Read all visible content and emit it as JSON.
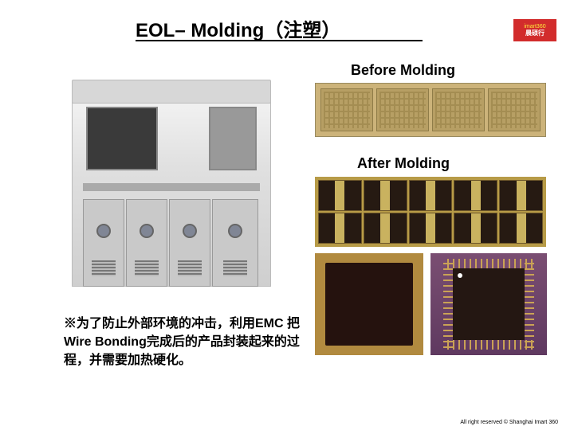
{
  "title": "EOL– Molding（注塑）",
  "logo": {
    "top": "imart360",
    "bottom": "晨硕行",
    "bg": "#d22c2c"
  },
  "labels": {
    "before": "Before Molding",
    "after": "After Molding"
  },
  "description": "※为了防止外部环境的冲击，利用EMC 把Wire Bonding完成后的产品封装起来的过程，并需要加热硬化。",
  "footer": "All right reserved © Shanghai Imart 360",
  "before_frame": {
    "units": 4,
    "bg": "#ccb37a",
    "unit_bg": "#b79f64"
  },
  "after_strip": {
    "cols": 5,
    "rows": 2,
    "frame_bg": "#b79b47",
    "mold_bg": "#261a12"
  },
  "after_close1": {
    "bg": "#b18a3f",
    "chip": "#25120e"
  },
  "after_close2": {
    "bg": "#7a4e72",
    "chip": "#241712",
    "lead": "#caa255"
  }
}
